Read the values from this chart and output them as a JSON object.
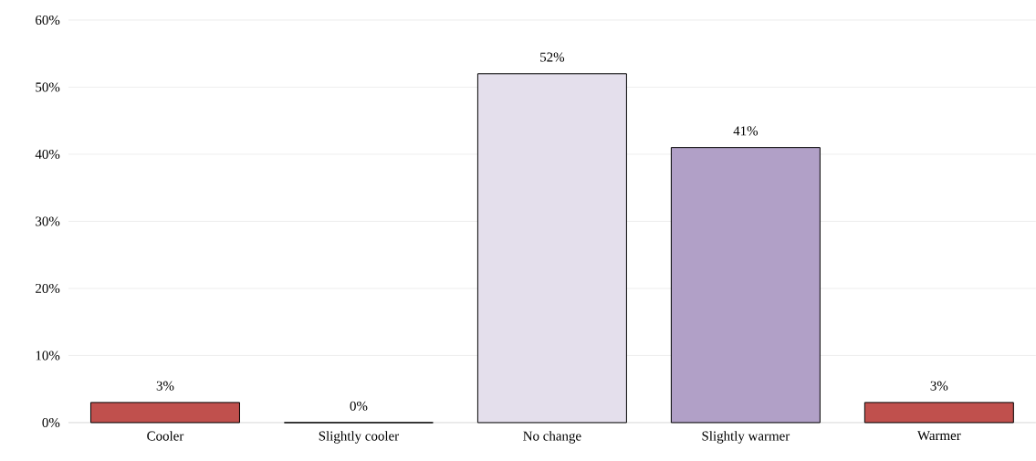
{
  "chart_data": {
    "type": "bar",
    "categories": [
      "Cooler",
      "Slightly cooler",
      "No change",
      "Slightly warmer",
      "Warmer"
    ],
    "values": [
      3,
      0,
      52,
      41,
      3
    ],
    "colors": [
      "#c0504d",
      "#c0504d",
      "#e4dfec",
      "#b1a0c7",
      "#c0504d"
    ],
    "value_labels": [
      "3%",
      "0%",
      "52%",
      "41%",
      "3%"
    ],
    "ylim": [
      0,
      60
    ],
    "yticks": [
      {
        "value": 0,
        "label": "0%"
      },
      {
        "value": 10,
        "label": "10%"
      },
      {
        "value": 20,
        "label": "20%"
      },
      {
        "value": 30,
        "label": "30%"
      },
      {
        "value": 40,
        "label": "40%"
      },
      {
        "value": 50,
        "label": "50%"
      },
      {
        "value": 60,
        "label": "60%"
      }
    ],
    "grid": "y"
  }
}
